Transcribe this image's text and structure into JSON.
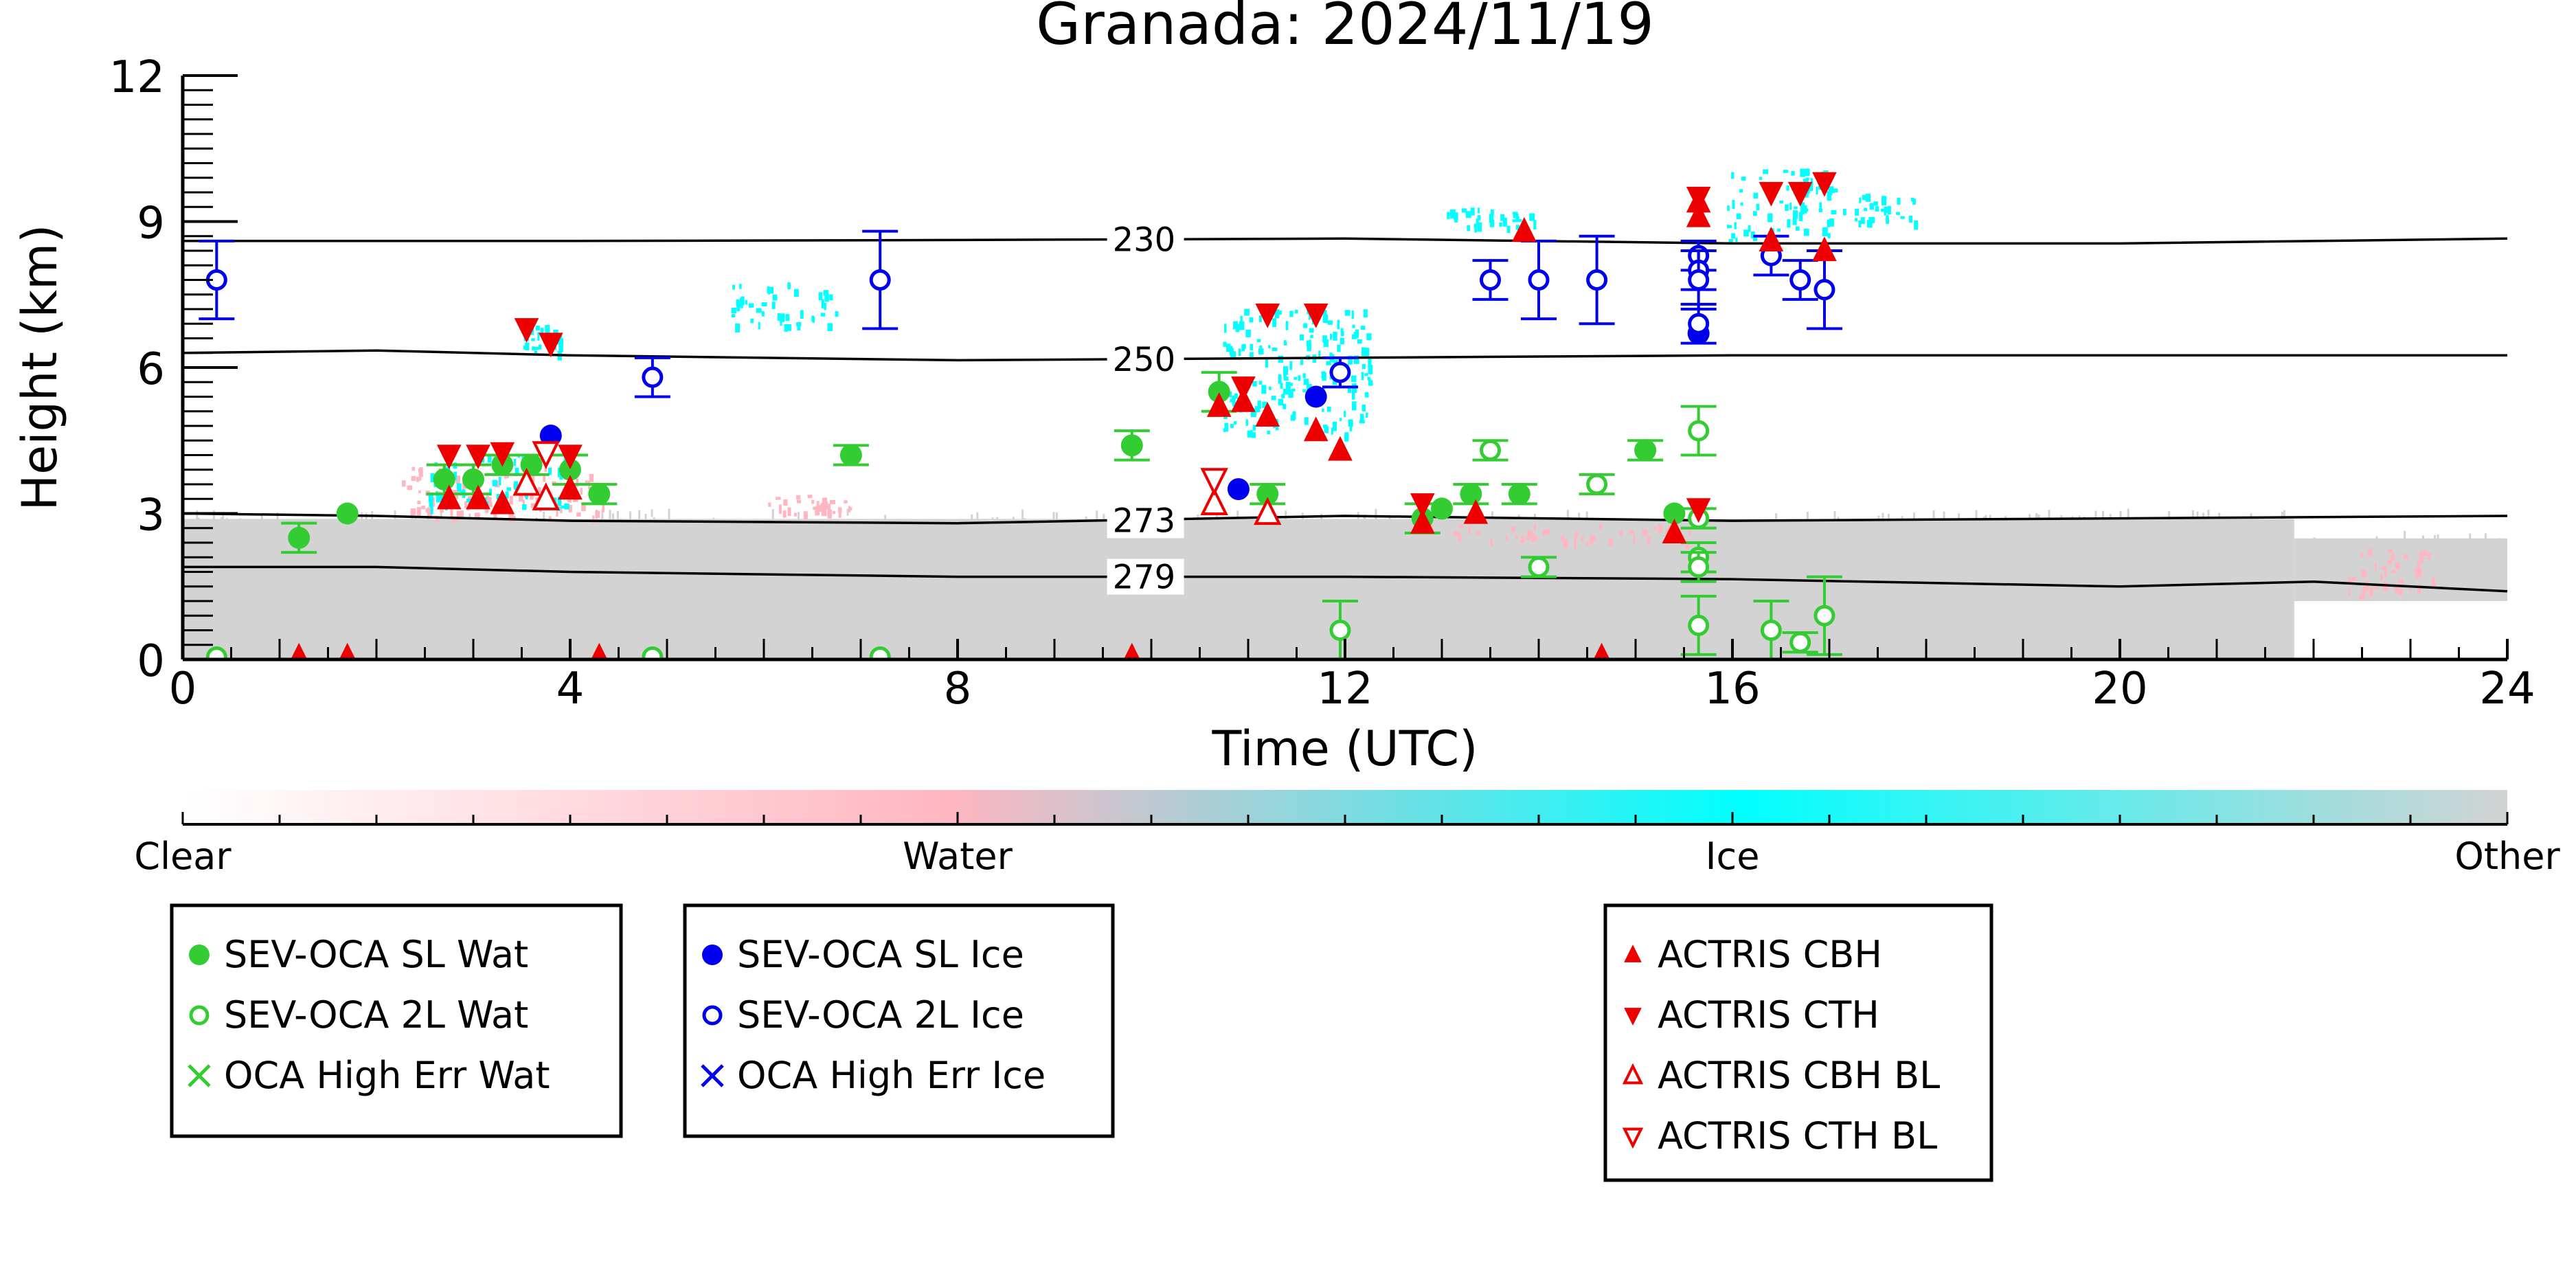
{
  "chart_data": {
    "type": "scatter",
    "title": "Granada: 2024/11/19",
    "xlabel": "Time (UTC)",
    "ylabel": "Height (km)",
    "xlim": [
      0,
      24
    ],
    "ylim": [
      0,
      12
    ],
    "xticks": [
      "0",
      "4",
      "8",
      "12",
      "16",
      "20",
      "24"
    ],
    "yticks": [
      "0",
      "3",
      "6",
      "9",
      "12"
    ],
    "colorbar": {
      "labels": [
        "Clear",
        "Water",
        "Ice",
        "Other"
      ],
      "colors": [
        "#ffffff",
        "#ffb6c1",
        "#00ffff",
        "#d3d3d3"
      ]
    },
    "isotherms": [
      {
        "label": "230",
        "label_x": 9.6,
        "points": [
          [
            0,
            8.6
          ],
          [
            4,
            8.6
          ],
          [
            8,
            8.62
          ],
          [
            12,
            8.65
          ],
          [
            16,
            8.55
          ],
          [
            20,
            8.55
          ],
          [
            24,
            8.65
          ]
        ]
      },
      {
        "label": "250",
        "label_x": 9.6,
        "points": [
          [
            0,
            6.3
          ],
          [
            2,
            6.35
          ],
          [
            4,
            6.25
          ],
          [
            8,
            6.15
          ],
          [
            12,
            6.2
          ],
          [
            16,
            6.25
          ],
          [
            20,
            6.25
          ],
          [
            24,
            6.25
          ]
        ]
      },
      {
        "label": "273",
        "label_x": 9.6,
        "points": [
          [
            0,
            3.0
          ],
          [
            2,
            2.95
          ],
          [
            4,
            2.85
          ],
          [
            8,
            2.8
          ],
          [
            12,
            2.95
          ],
          [
            16,
            2.85
          ],
          [
            20,
            2.9
          ],
          [
            24,
            2.95
          ]
        ]
      },
      {
        "label": "279",
        "label_x": 9.6,
        "points": [
          [
            0,
            1.9
          ],
          [
            2,
            1.9
          ],
          [
            4,
            1.8
          ],
          [
            8,
            1.7
          ],
          [
            12,
            1.7
          ],
          [
            16,
            1.65
          ],
          [
            20,
            1.5
          ],
          [
            22,
            1.6
          ],
          [
            24,
            1.4
          ]
        ]
      }
    ],
    "series": [
      {
        "name": "SEV-OCA SL Wat",
        "marker": "circle-filled",
        "color": "#33cc33",
        "points": [
          [
            1.2,
            2.5,
            0.3
          ],
          [
            1.7,
            3.0,
            0
          ],
          [
            2.7,
            3.7,
            0.3
          ],
          [
            3.0,
            3.7,
            0.3
          ],
          [
            3.3,
            4.0,
            0.2
          ],
          [
            3.6,
            4.0,
            0.2
          ],
          [
            4.0,
            3.9,
            0.3
          ],
          [
            4.3,
            3.4,
            0.2
          ],
          [
            6.9,
            4.2,
            0.2
          ],
          [
            9.8,
            4.4,
            0.3
          ],
          [
            10.7,
            5.5,
            0.4
          ],
          [
            11.2,
            3.4,
            0.2
          ],
          [
            12.8,
            2.9,
            0.3
          ],
          [
            13.0,
            3.1,
            0
          ],
          [
            13.3,
            3.4,
            0.2
          ],
          [
            13.8,
            3.4,
            0.2
          ],
          [
            15.1,
            4.3,
            0.2
          ],
          [
            15.4,
            3.0,
            0
          ]
        ]
      },
      {
        "name": "SEV-OCA 2L Wat",
        "marker": "circle-open",
        "color": "#33cc33",
        "points": [
          [
            0.35,
            0.05,
            0
          ],
          [
            4.85,
            0.05,
            0
          ],
          [
            7.2,
            0.05,
            0
          ],
          [
            11.95,
            0.6,
            0.6
          ],
          [
            13.5,
            4.3,
            0.2
          ],
          [
            14.0,
            1.9,
            0.2
          ],
          [
            14.6,
            3.6,
            0.2
          ],
          [
            15.65,
            4.7,
            0.5
          ],
          [
            15.65,
            2.9,
            0.2
          ],
          [
            15.65,
            2.1,
            0.3
          ],
          [
            15.65,
            1.9,
            0.3
          ],
          [
            15.65,
            0.7,
            0.6
          ],
          [
            16.4,
            0.6,
            0.6
          ],
          [
            16.7,
            0.35,
            0.2
          ],
          [
            16.95,
            0.9,
            0.8
          ]
        ]
      },
      {
        "name": "OCA High Err Wat",
        "marker": "x",
        "color": "#33cc33",
        "points": []
      },
      {
        "name": "SEV-OCA SL Ice",
        "marker": "circle-filled",
        "color": "#0000ee",
        "points": [
          [
            3.8,
            4.6,
            0
          ],
          [
            10.9,
            3.5,
            0
          ],
          [
            11.7,
            5.4,
            0
          ],
          [
            15.65,
            6.7,
            0
          ]
        ]
      },
      {
        "name": "SEV-OCA 2L Ice",
        "marker": "circle-open",
        "color": "#0000ee",
        "points": [
          [
            0.35,
            7.8,
            0.8
          ],
          [
            4.85,
            5.8,
            0.4
          ],
          [
            7.2,
            7.8,
            1.0
          ],
          [
            11.95,
            5.9,
            0.3
          ],
          [
            13.5,
            7.8,
            0.4
          ],
          [
            14.0,
            7.8,
            0.8
          ],
          [
            14.6,
            7.8,
            0.9
          ],
          [
            15.65,
            8.3,
            0.3
          ],
          [
            15.65,
            8.0,
            0.4
          ],
          [
            15.65,
            7.8,
            0.6
          ],
          [
            15.65,
            6.9,
            0.4
          ],
          [
            16.4,
            8.3,
            0.4
          ],
          [
            16.7,
            7.8,
            0.4
          ],
          [
            16.95,
            7.6,
            0.8
          ]
        ]
      },
      {
        "name": "OCA High Err Ice",
        "marker": "x",
        "color": "#0000ee",
        "points": []
      },
      {
        "name": "ACTRIS CBH",
        "marker": "triangle-up-filled",
        "color": "#ee0000",
        "points": [
          [
            1.2,
            0.05
          ],
          [
            1.7,
            0.05
          ],
          [
            2.75,
            3.3
          ],
          [
            3.05,
            3.3
          ],
          [
            3.3,
            3.2
          ],
          [
            3.75,
            3.3
          ],
          [
            4.0,
            3.5
          ],
          [
            4.3,
            0.05
          ],
          [
            9.8,
            0.05
          ],
          [
            10.7,
            5.2
          ],
          [
            10.95,
            5.3
          ],
          [
            11.2,
            5.0
          ],
          [
            11.7,
            4.7
          ],
          [
            11.95,
            4.3
          ],
          [
            12.8,
            2.8
          ],
          [
            13.35,
            3.0
          ],
          [
            13.85,
            8.8
          ],
          [
            14.65,
            0.05
          ],
          [
            15.4,
            2.6
          ],
          [
            15.65,
            9.1
          ],
          [
            15.65,
            9.4
          ],
          [
            16.4,
            8.6
          ],
          [
            16.95,
            8.4
          ]
        ]
      },
      {
        "name": "ACTRIS CTH",
        "marker": "triangle-down-filled",
        "color": "#ee0000",
        "points": [
          [
            2.75,
            4.2
          ],
          [
            3.05,
            4.2
          ],
          [
            3.3,
            4.25
          ],
          [
            3.55,
            6.8
          ],
          [
            3.8,
            6.5
          ],
          [
            4.0,
            4.2
          ],
          [
            10.95,
            5.6
          ],
          [
            11.2,
            7.1
          ],
          [
            11.7,
            7.1
          ],
          [
            12.8,
            3.2
          ],
          [
            15.65,
            3.1
          ],
          [
            15.65,
            9.5
          ],
          [
            16.4,
            9.6
          ],
          [
            16.7,
            9.6
          ],
          [
            16.95,
            9.8
          ]
        ]
      },
      {
        "name": "ACTRIS CBH BL",
        "marker": "triangle-up-open",
        "color": "#ee0000",
        "points": [
          [
            3.55,
            3.6
          ],
          [
            3.75,
            3.3
          ],
          [
            10.65,
            3.2
          ],
          [
            11.2,
            3.0
          ]
        ]
      },
      {
        "name": "ACTRIS CTH BL",
        "marker": "triangle-down-open",
        "color": "#ee0000",
        "points": [
          [
            3.75,
            4.25
          ],
          [
            10.65,
            3.7
          ]
        ]
      }
    ],
    "cloud_regions": [
      {
        "type": "Other",
        "color": "#d3d3d3",
        "x0": 0.0,
        "x1": 21.8,
        "y0": 0.0,
        "y1": 3.1
      },
      {
        "type": "Other",
        "color": "#d3d3d3",
        "x0": 21.8,
        "x1": 24.0,
        "y0": 1.2,
        "y1": 2.7
      },
      {
        "type": "Water",
        "color": "#ffb6c1",
        "x0": 22.3,
        "x1": 23.3,
        "y0": 1.3,
        "y1": 2.3
      },
      {
        "type": "Water",
        "color": "#ffb6c1",
        "x0": 2.2,
        "x1": 4.4,
        "y0": 2.9,
        "y1": 4.0
      },
      {
        "type": "Water",
        "color": "#ffb6c1",
        "x0": 6.0,
        "x1": 6.9,
        "y0": 3.0,
        "y1": 3.4
      },
      {
        "type": "Water",
        "color": "#ffb6c1",
        "x0": 12.7,
        "x1": 15.7,
        "y0": 2.4,
        "y1": 2.8
      },
      {
        "type": "Ice",
        "color": "#00ffff",
        "x0": 2.5,
        "x1": 4.0,
        "y0": 3.1,
        "y1": 4.3
      },
      {
        "type": "Ice",
        "color": "#00ffff",
        "x0": 3.5,
        "x1": 3.9,
        "y0": 6.3,
        "y1": 6.9
      },
      {
        "type": "Ice",
        "color": "#00ffff",
        "x0": 5.6,
        "x1": 6.8,
        "y0": 6.8,
        "y1": 7.8
      },
      {
        "type": "Ice",
        "color": "#00ffff",
        "x0": 10.7,
        "x1": 12.3,
        "y0": 4.6,
        "y1": 7.3
      },
      {
        "type": "Ice",
        "color": "#00ffff",
        "x0": 13.0,
        "x1": 14.0,
        "y0": 8.9,
        "y1": 9.3
      },
      {
        "type": "Ice",
        "color": "#00ffff",
        "x0": 15.9,
        "x1": 17.1,
        "y0": 8.6,
        "y1": 10.2
      },
      {
        "type": "Ice",
        "color": "#00ffff",
        "x0": 17.1,
        "x1": 17.9,
        "y0": 9.0,
        "y1": 9.6
      }
    ]
  },
  "legend_groups": [
    {
      "entries": [
        "SEV-OCA SL Wat",
        "SEV-OCA 2L Wat",
        "OCA High Err Wat"
      ]
    },
    {
      "entries": [
        "SEV-OCA SL Ice",
        "SEV-OCA 2L Ice",
        "OCA High Err Ice"
      ]
    },
    {
      "entries": [
        "ACTRIS CBH",
        "ACTRIS CTH",
        "ACTRIS CBH BL",
        "ACTRIS CTH BL"
      ]
    }
  ]
}
